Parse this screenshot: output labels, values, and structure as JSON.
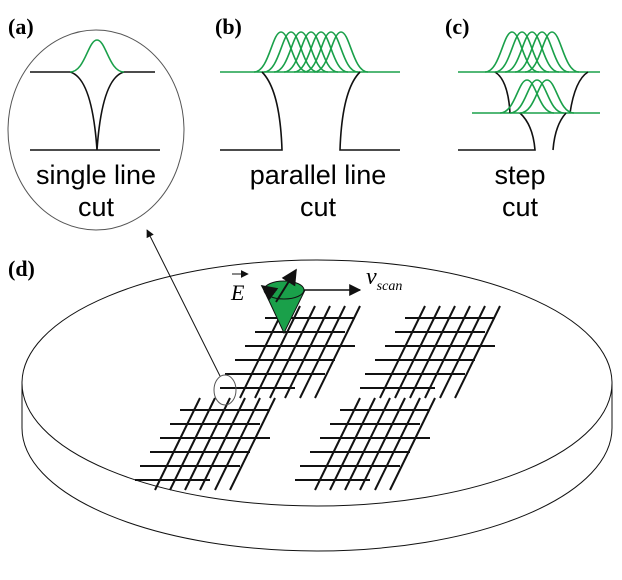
{
  "panels": [
    {
      "label": "(a)",
      "caption": [
        "single line",
        "cut"
      ]
    },
    {
      "label": "(b)",
      "caption": [
        "parallel line",
        "cut"
      ]
    },
    {
      "label": "(c)",
      "caption": [
        "step",
        "cut"
      ]
    }
  ],
  "panel_d": {
    "label": "(d)",
    "field": "E",
    "velocity": "v",
    "velocity_subscript": "scan"
  }
}
